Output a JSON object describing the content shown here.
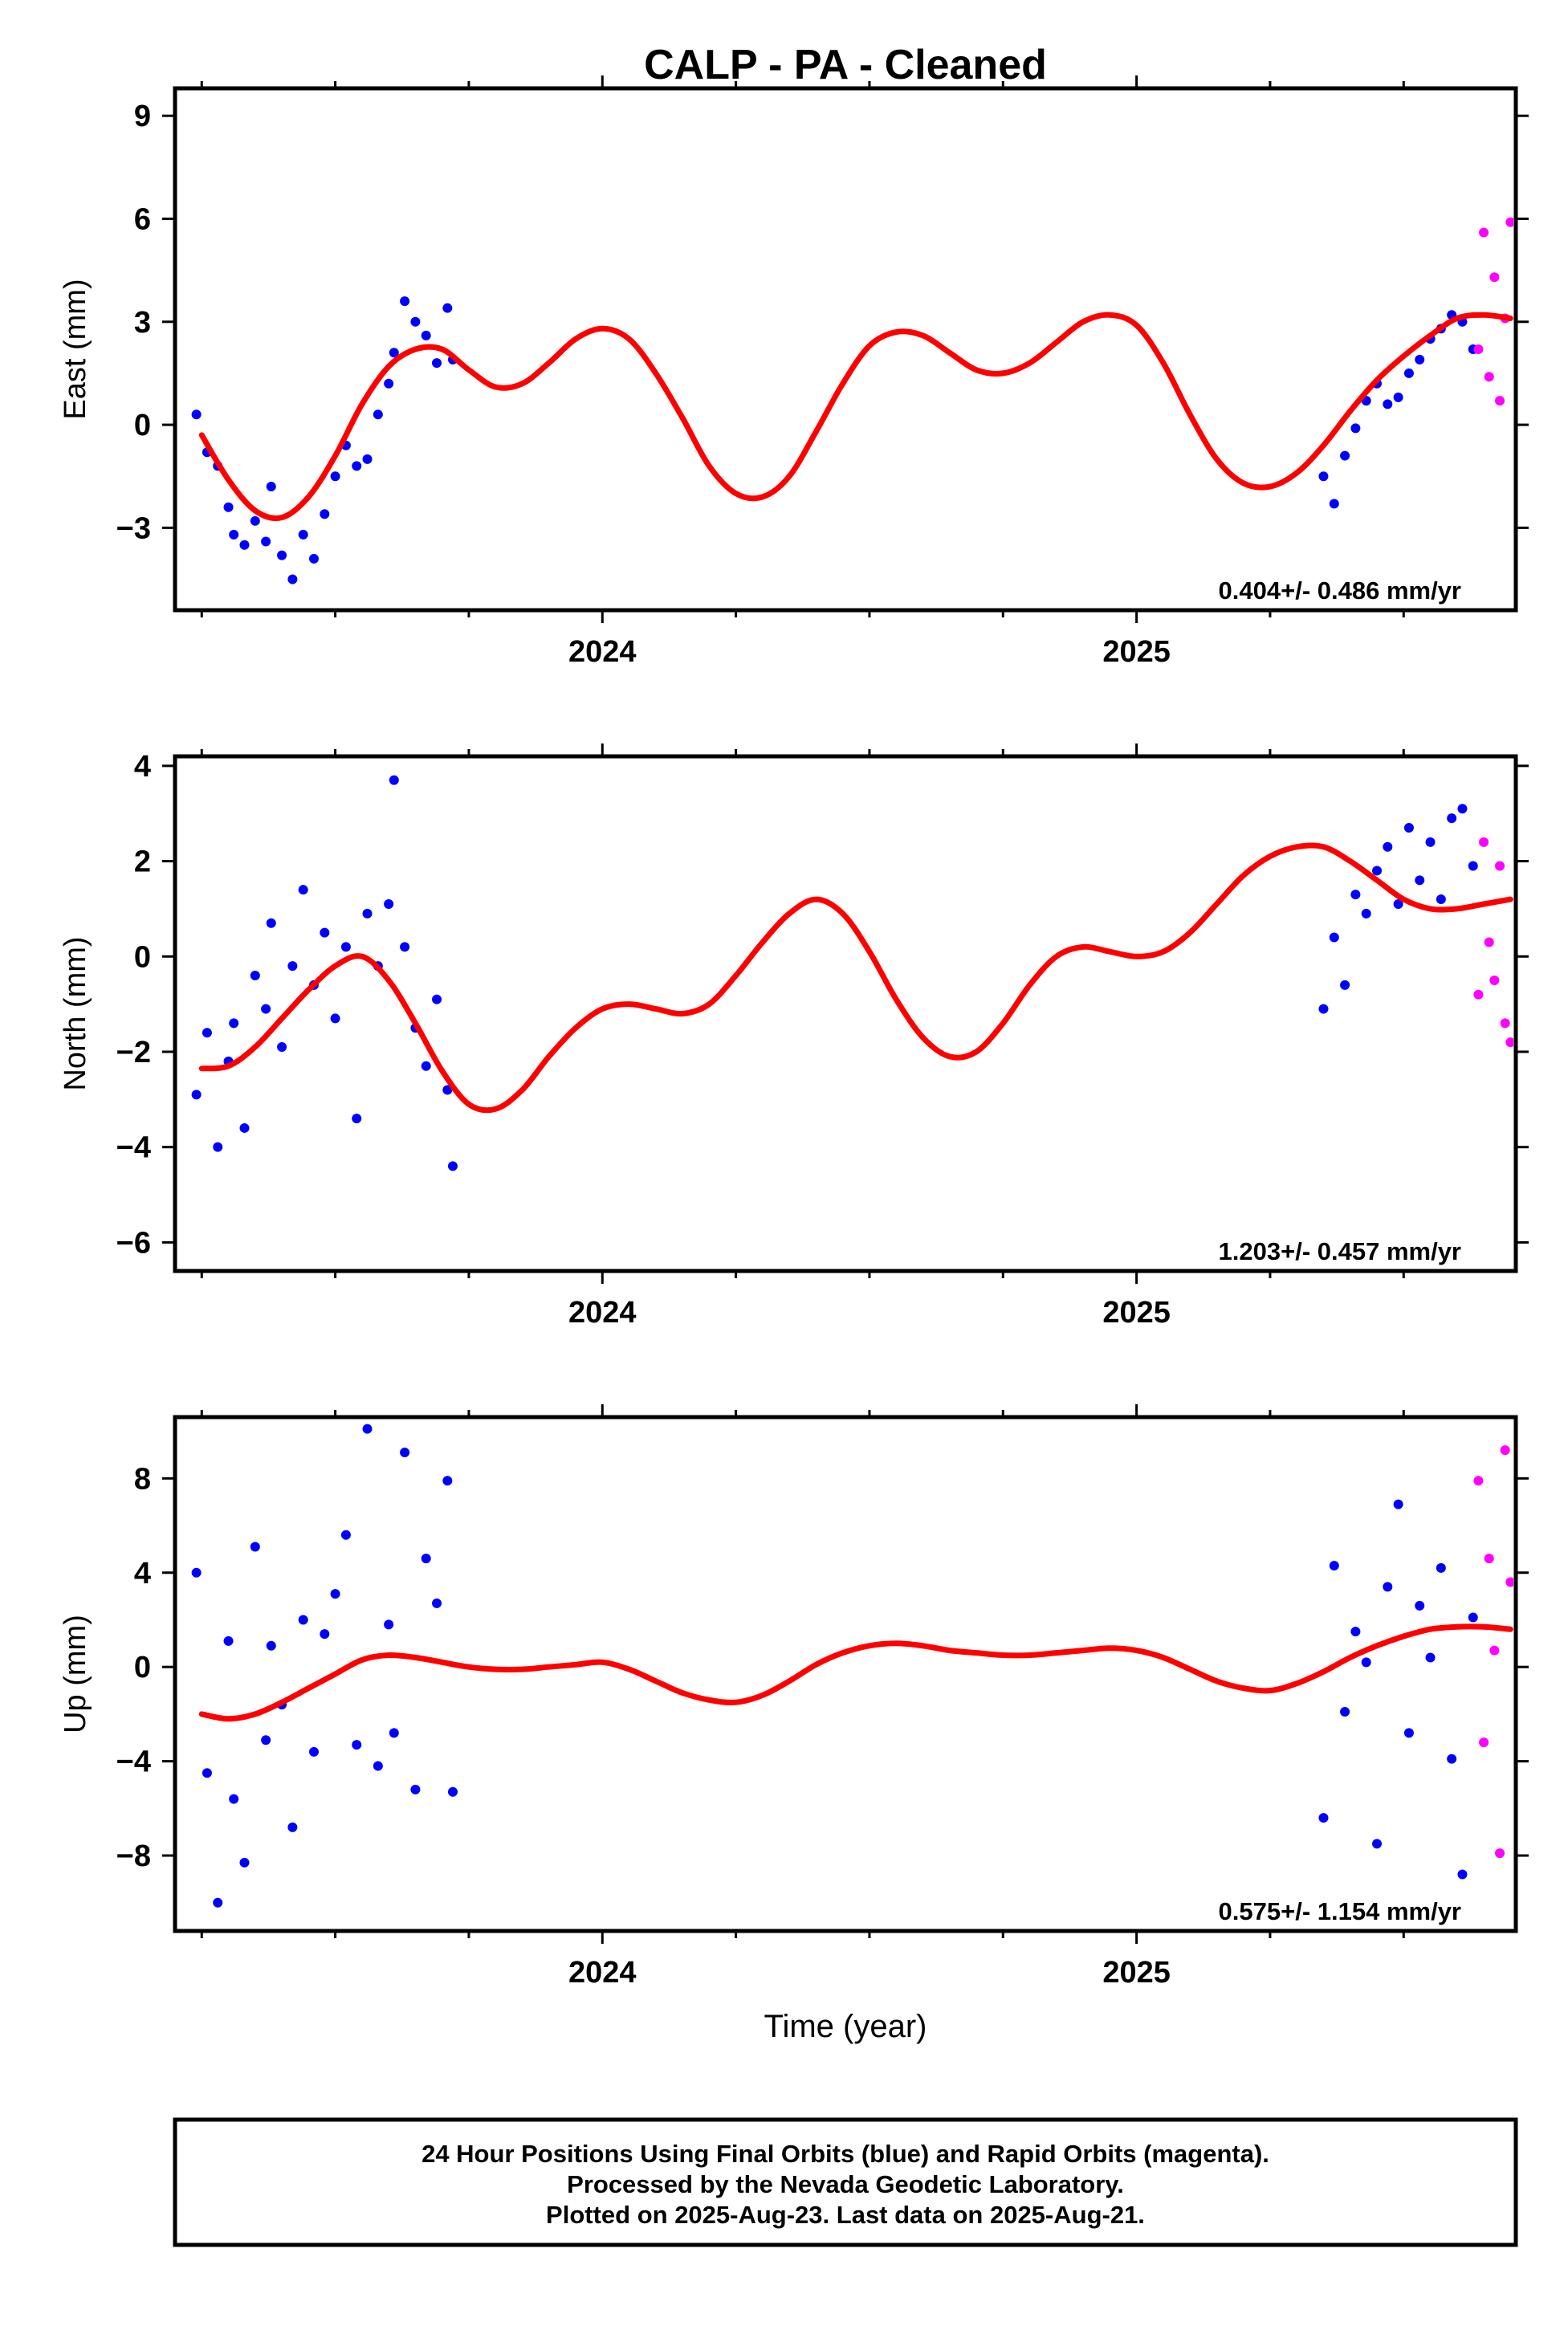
{
  "chart_data": {
    "title": "CALP  - PA - Cleaned",
    "xlabel": "Time (year)",
    "xlim": [
      2023.2,
      2025.71
    ],
    "x_ticks": [
      2024,
      2025
    ],
    "x_minor_ticks": [
      2023.25,
      2023.5,
      2023.75,
      2024.25,
      2024.5,
      2024.75,
      2025.25,
      2025.5
    ],
    "colors": {
      "final": "#0000ff",
      "rapid": "#ff00ff",
      "model": "#ff0000",
      "axes": "#000000"
    },
    "footer": [
      "24 Hour Positions Using Final Orbits (blue) and Rapid Orbits (magenta).",
      "Processed by the Nevada Geodetic Laboratory.",
      "Plotted on 2025-Aug-23. Last data on 2025-Aug-21."
    ],
    "panels": [
      {
        "id": "east",
        "type": "scatter",
        "ylabel": "East (mm)",
        "ylim": [
          -5.4,
          9.8
        ],
        "yticks": [
          9,
          6,
          3,
          0,
          -3
        ],
        "ytick_labels": [
          "9",
          "6",
          "3",
          "0",
          "−3"
        ],
        "rate_label": "0.404+/- 0.486 mm/yr",
        "model_curve": {
          "name": "model",
          "x": [
            2023.25,
            2023.3,
            2023.35,
            2023.4,
            2023.45,
            2023.5,
            2023.55,
            2023.6,
            2023.65,
            2023.7,
            2023.75,
            2023.8,
            2023.85,
            2023.9,
            2023.95,
            2024.0,
            2024.05,
            2024.1,
            2024.15,
            2024.2,
            2024.25,
            2024.3,
            2024.35,
            2024.4,
            2024.45,
            2024.5,
            2024.55,
            2024.6,
            2024.65,
            2024.7,
            2024.75,
            2024.8,
            2024.85,
            2024.9,
            2024.95,
            2025.0,
            2025.05,
            2025.1,
            2025.15,
            2025.2,
            2025.25,
            2025.3,
            2025.35,
            2025.4,
            2025.45,
            2025.5,
            2025.55,
            2025.6,
            2025.65,
            2025.7
          ],
          "y": [
            -0.3,
            -1.6,
            -2.5,
            -2.7,
            -2.1,
            -0.9,
            0.6,
            1.7,
            2.2,
            2.2,
            1.6,
            1.1,
            1.2,
            1.8,
            2.5,
            2.8,
            2.5,
            1.5,
            0.2,
            -1.2,
            -2.0,
            -2.1,
            -1.5,
            -0.2,
            1.2,
            2.3,
            2.7,
            2.6,
            2.1,
            1.6,
            1.5,
            1.8,
            2.4,
            3.0,
            3.2,
            2.9,
            1.8,
            0.3,
            -1.0,
            -1.7,
            -1.8,
            -1.4,
            -0.6,
            0.4,
            1.3,
            2.0,
            2.6,
            3.1,
            3.2,
            3.1
          ]
        },
        "final_x": [
          2023.24,
          2023.26,
          2023.28,
          2023.3,
          2023.31,
          2023.33,
          2023.35,
          2023.37,
          2023.38,
          2023.4,
          2023.42,
          2023.44,
          2023.46,
          2023.48,
          2023.5,
          2023.52,
          2023.54,
          2023.56,
          2023.58,
          2023.6,
          2023.61,
          2023.63,
          2023.65,
          2023.67,
          2023.69,
          2023.71,
          2023.72,
          2025.35,
          2025.37,
          2025.39,
          2025.41,
          2025.43,
          2025.45,
          2025.47,
          2025.49,
          2025.51,
          2025.53,
          2025.55,
          2025.57,
          2025.59,
          2025.61,
          2025.63
        ],
        "final_y": [
          0.3,
          -0.8,
          -1.2,
          -2.4,
          -3.2,
          -3.5,
          -2.8,
          -3.4,
          -1.8,
          -3.8,
          -4.5,
          -3.2,
          -3.9,
          -2.6,
          -1.5,
          -0.6,
          -1.2,
          -1.0,
          0.3,
          1.2,
          2.1,
          3.6,
          3.0,
          2.6,
          1.8,
          3.4,
          1.9,
          -1.5,
          -2.3,
          -0.9,
          -0.1,
          0.7,
          1.2,
          0.6,
          0.8,
          1.5,
          1.9,
          2.5,
          2.8,
          3.2,
          3.0,
          2.2
        ],
        "rapid_x": [
          2025.64,
          2025.65,
          2025.66,
          2025.67,
          2025.68,
          2025.69,
          2025.7
        ],
        "rapid_y": [
          2.2,
          5.6,
          1.4,
          4.3,
          0.7,
          3.1,
          5.9
        ]
      },
      {
        "id": "north",
        "type": "scatter",
        "ylabel": "North (mm)",
        "ylim": [
          -6.6,
          4.2
        ],
        "yticks": [
          4,
          2,
          0,
          -2,
          -4,
          -6
        ],
        "ytick_labels": [
          "4",
          "2",
          "0",
          "−2",
          "−4",
          "−6"
        ],
        "rate_label": "1.203+/- 0.457 mm/yr",
        "model_curve": {
          "name": "model",
          "x": [
            2023.25,
            2023.3,
            2023.35,
            2023.4,
            2023.45,
            2023.5,
            2023.55,
            2023.6,
            2023.65,
            2023.7,
            2023.75,
            2023.8,
            2023.85,
            2023.9,
            2023.95,
            2024.0,
            2024.05,
            2024.1,
            2024.15,
            2024.2,
            2024.25,
            2024.3,
            2024.35,
            2024.4,
            2024.45,
            2024.5,
            2024.55,
            2024.6,
            2024.65,
            2024.7,
            2024.75,
            2024.8,
            2024.85,
            2024.9,
            2024.95,
            2025.0,
            2025.05,
            2025.1,
            2025.15,
            2025.2,
            2025.25,
            2025.3,
            2025.35,
            2025.4,
            2025.45,
            2025.5,
            2025.55,
            2025.6,
            2025.65,
            2025.7
          ],
          "y": [
            -2.35,
            -2.3,
            -1.9,
            -1.3,
            -0.7,
            -0.2,
            0.0,
            -0.5,
            -1.4,
            -2.4,
            -3.1,
            -3.2,
            -2.8,
            -2.1,
            -1.5,
            -1.1,
            -1.0,
            -1.1,
            -1.2,
            -1.0,
            -0.4,
            0.3,
            0.9,
            1.2,
            0.9,
            0.1,
            -0.9,
            -1.7,
            -2.1,
            -2.0,
            -1.4,
            -0.6,
            0.0,
            0.2,
            0.1,
            0.0,
            0.1,
            0.5,
            1.1,
            1.7,
            2.1,
            2.3,
            2.3,
            2.0,
            1.6,
            1.2,
            1.0,
            1.0,
            1.1,
            1.2
          ]
        },
        "final_x": [
          2023.24,
          2023.26,
          2023.28,
          2023.3,
          2023.31,
          2023.33,
          2023.35,
          2023.37,
          2023.38,
          2023.4,
          2023.42,
          2023.44,
          2023.46,
          2023.48,
          2023.5,
          2023.52,
          2023.54,
          2023.56,
          2023.58,
          2023.6,
          2023.61,
          2023.63,
          2023.65,
          2023.67,
          2023.69,
          2023.71,
          2023.72,
          2025.35,
          2025.37,
          2025.39,
          2025.41,
          2025.43,
          2025.45,
          2025.47,
          2025.49,
          2025.51,
          2025.53,
          2025.55,
          2025.57,
          2025.59,
          2025.61,
          2025.63
        ],
        "final_y": [
          -2.9,
          -1.6,
          -4.0,
          -2.2,
          -1.4,
          -3.6,
          -0.4,
          -1.1,
          0.7,
          -1.9,
          -0.2,
          1.4,
          -0.6,
          0.5,
          -1.3,
          0.2,
          -3.4,
          0.9,
          -0.2,
          1.1,
          3.7,
          0.2,
          -1.5,
          -2.3,
          -0.9,
          -2.8,
          -4.4,
          -1.1,
          0.4,
          -0.6,
          1.3,
          0.9,
          1.8,
          2.3,
          1.1,
          2.7,
          1.6,
          2.4,
          1.2,
          2.9,
          3.1,
          1.9
        ],
        "rapid_x": [
          2025.64,
          2025.65,
          2025.66,
          2025.67,
          2025.68,
          2025.69,
          2025.7
        ],
        "rapid_y": [
          -0.8,
          2.4,
          0.3,
          -0.5,
          1.9,
          -1.4,
          -1.8
        ]
      },
      {
        "id": "up",
        "type": "scatter",
        "ylabel": "Up (mm)",
        "ylim": [
          -11.2,
          10.6
        ],
        "yticks": [
          8,
          4,
          0,
          -4,
          -8
        ],
        "ytick_labels": [
          "8",
          "4",
          "0",
          "−4",
          "−8"
        ],
        "rate_label": "0.575+/- 1.154 mm/yr",
        "model_curve": {
          "name": "model",
          "x": [
            2023.25,
            2023.3,
            2023.35,
            2023.4,
            2023.45,
            2023.5,
            2023.55,
            2023.6,
            2023.65,
            2023.7,
            2023.75,
            2023.8,
            2023.85,
            2023.9,
            2023.95,
            2024.0,
            2024.05,
            2024.1,
            2024.15,
            2024.2,
            2024.25,
            2024.3,
            2024.35,
            2024.4,
            2024.45,
            2024.5,
            2024.55,
            2024.6,
            2024.65,
            2024.7,
            2024.75,
            2024.8,
            2024.85,
            2024.9,
            2024.95,
            2025.0,
            2025.05,
            2025.1,
            2025.15,
            2025.2,
            2025.25,
            2025.3,
            2025.35,
            2025.4,
            2025.45,
            2025.5,
            2025.55,
            2025.6,
            2025.65,
            2025.7
          ],
          "y": [
            -2.0,
            -2.2,
            -2.0,
            -1.5,
            -0.9,
            -0.3,
            0.3,
            0.5,
            0.4,
            0.2,
            0.0,
            -0.1,
            -0.1,
            0.0,
            0.1,
            0.2,
            -0.1,
            -0.6,
            -1.1,
            -1.4,
            -1.5,
            -1.2,
            -0.6,
            0.1,
            0.6,
            0.9,
            1.0,
            0.9,
            0.7,
            0.6,
            0.5,
            0.5,
            0.6,
            0.7,
            0.8,
            0.7,
            0.4,
            -0.1,
            -0.6,
            -0.9,
            -1.0,
            -0.7,
            -0.2,
            0.4,
            0.9,
            1.3,
            1.6,
            1.7,
            1.7,
            1.6
          ]
        },
        "final_x": [
          2023.24,
          2023.26,
          2023.28,
          2023.3,
          2023.31,
          2023.33,
          2023.35,
          2023.37,
          2023.38,
          2023.4,
          2023.42,
          2023.44,
          2023.46,
          2023.48,
          2023.5,
          2023.52,
          2023.54,
          2023.56,
          2023.58,
          2023.6,
          2023.61,
          2023.63,
          2023.65,
          2023.67,
          2023.69,
          2023.71,
          2023.72,
          2025.35,
          2025.37,
          2025.39,
          2025.41,
          2025.43,
          2025.45,
          2025.47,
          2025.49,
          2025.51,
          2025.53,
          2025.55,
          2025.57,
          2025.59,
          2025.61,
          2025.63
        ],
        "final_y": [
          4.0,
          -4.5,
          -10.0,
          1.1,
          -5.6,
          -8.3,
          5.1,
          -3.1,
          0.9,
          -1.6,
          -6.8,
          2.0,
          -3.6,
          1.4,
          3.1,
          5.6,
          -3.3,
          10.1,
          -4.2,
          1.8,
          -2.8,
          9.1,
          -5.2,
          4.6,
          2.7,
          7.9,
          -5.3,
          -6.4,
          4.3,
          -1.9,
          1.5,
          0.2,
          -7.5,
          3.4,
          6.9,
          -2.8,
          2.6,
          0.4,
          4.2,
          -3.9,
          -8.8,
          2.1
        ],
        "rapid_x": [
          2025.64,
          2025.65,
          2025.66,
          2025.67,
          2025.68,
          2025.69,
          2025.7
        ],
        "rapid_y": [
          7.9,
          -3.2,
          4.6,
          0.7,
          -7.9,
          9.2,
          3.6
        ]
      }
    ]
  }
}
